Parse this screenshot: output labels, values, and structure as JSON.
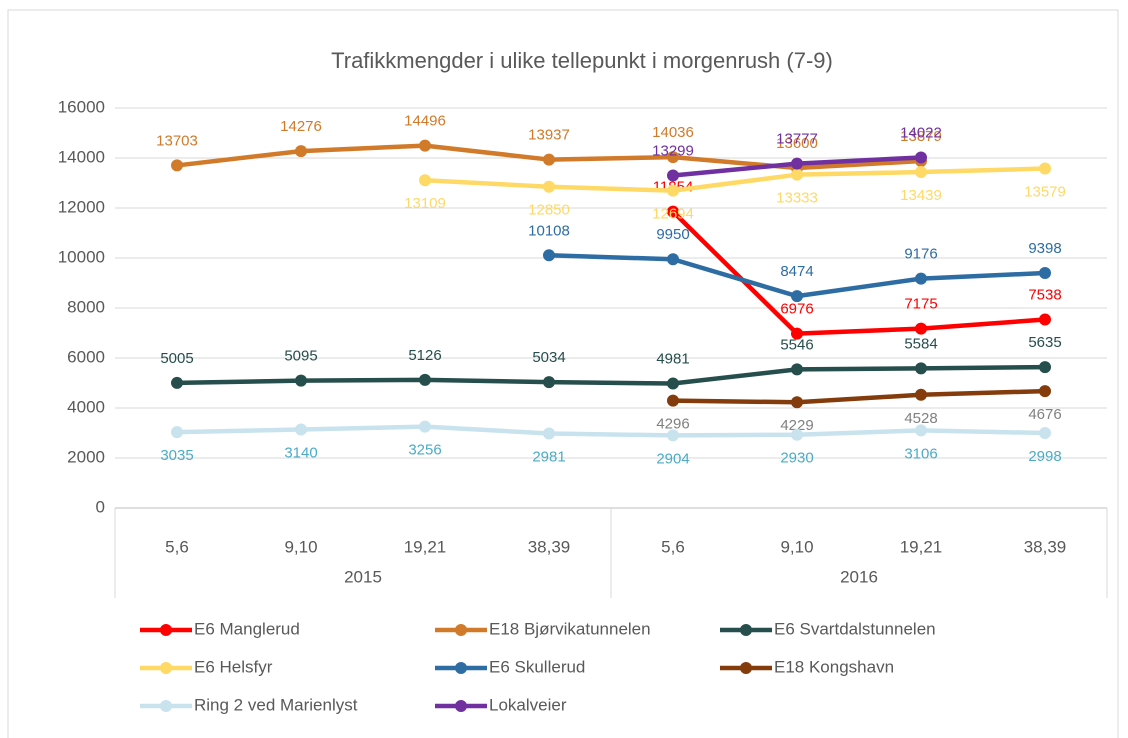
{
  "chart_data": {
    "type": "line",
    "title": "Trafikkmengder i ulike tellepunkt i morgenrush (7-9)",
    "categories": [
      "5,6",
      "9,10",
      "19,21",
      "38,39",
      "5,6",
      "9,10",
      "19,21",
      "38,39"
    ],
    "groups": [
      "2015",
      "2016"
    ],
    "ylim": [
      0,
      16000
    ],
    "yticks": [
      0,
      2000,
      4000,
      6000,
      8000,
      10000,
      12000,
      14000,
      16000
    ],
    "grid": true,
    "legend": "bottom",
    "series": [
      {
        "name": "E6 Manglerud",
        "color": "#ff0000",
        "values": [
          null,
          null,
          null,
          null,
          11854,
          6976,
          7175,
          7538
        ]
      },
      {
        "name": "E18 Bjørvikatunnelen",
        "color": "#d07a2a",
        "values": [
          13703,
          14276,
          14496,
          13937,
          14036,
          13600,
          13879,
          null
        ]
      },
      {
        "name": "E6 Svartdalstunnelen",
        "color": "#264e4c",
        "values": [
          5005,
          5095,
          5126,
          5034,
          4981,
          5546,
          5584,
          5635
        ]
      },
      {
        "name": "E6 Helsfyr",
        "color": "#ffd966",
        "values": [
          null,
          null,
          13109,
          12850,
          12694,
          13333,
          13439,
          13579
        ]
      },
      {
        "name": "E6 Skullerud",
        "color": "#2e6ca4",
        "values": [
          null,
          null,
          null,
          10108,
          9950,
          8474,
          9176,
          9398
        ]
      },
      {
        "name": "E18 Kongshavn",
        "color": "#843c0c",
        "label_color": "#808080",
        "values": [
          null,
          null,
          null,
          null,
          4296,
          4229,
          4528,
          4676
        ]
      },
      {
        "name": "Ring 2 ved Marienlyst",
        "color": "#c9e3ee",
        "label_color": "#4bacc6",
        "values": [
          3035,
          3140,
          3256,
          2981,
          2904,
          2930,
          3106,
          2998
        ]
      },
      {
        "name": "Lokalveier",
        "color": "#7030a0",
        "values": [
          null,
          null,
          null,
          null,
          13299,
          13777,
          14022,
          null
        ]
      }
    ]
  }
}
